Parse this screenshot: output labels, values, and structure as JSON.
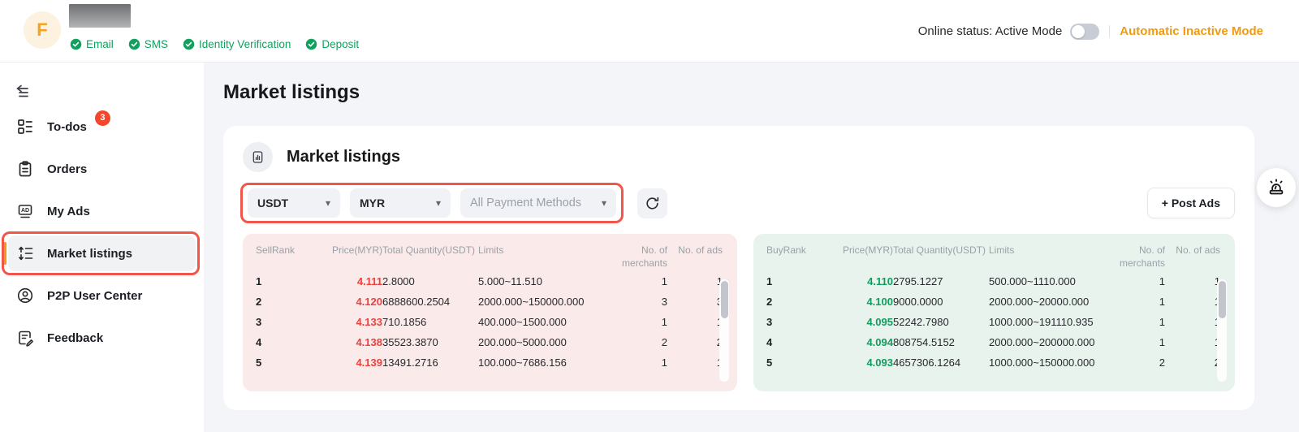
{
  "colors": {
    "accent_orange": "#F09A11",
    "annotation_red": "#F2564A",
    "badge_red": "#F4452D",
    "verified_green": "#12A05F",
    "sell_bg": "#FBEAEA",
    "buy_bg": "#E9F3EE",
    "sell_price": "#EF3F3B",
    "buy_price": "#0E9D5B"
  },
  "header": {
    "avatar_letter": "F",
    "verifications": [
      {
        "label": "Email"
      },
      {
        "label": "SMS"
      },
      {
        "label": "Identity Verification"
      },
      {
        "label": "Deposit"
      }
    ],
    "online_status_label": "Online status: Active Mode",
    "auto_mode_label": "Automatic Inactive Mode"
  },
  "sidebar": {
    "items": [
      {
        "label": "To-dos",
        "badge": "3"
      },
      {
        "label": "Orders"
      },
      {
        "label": "My Ads"
      },
      {
        "label": "Market listings",
        "active": true
      },
      {
        "label": "P2P User Center"
      },
      {
        "label": "Feedback"
      }
    ]
  },
  "main": {
    "page_title": "Market listings",
    "card_title": "Market listings",
    "filters": {
      "asset": "USDT",
      "fiat": "MYR",
      "payment_placeholder": "All Payment Methods"
    },
    "post_ads_label": "+ Post Ads"
  },
  "sell_table": {
    "headers": [
      "SellRank",
      "Price(MYR)",
      "Total Quantity(USDT)",
      "Limits",
      "No. of merchants",
      "No. of ads"
    ],
    "rows": [
      [
        "1",
        "4.111",
        "2.8000",
        "5.000~11.510",
        "1",
        "1"
      ],
      [
        "2",
        "4.120",
        "6888600.2504",
        "2000.000~150000.000",
        "3",
        "3"
      ],
      [
        "3",
        "4.133",
        "710.1856",
        "400.000~1500.000",
        "1",
        "1"
      ],
      [
        "4",
        "4.138",
        "35523.3870",
        "200.000~5000.000",
        "2",
        "2"
      ],
      [
        "5",
        "4.139",
        "13491.2716",
        "100.000~7686.156",
        "1",
        "1"
      ]
    ]
  },
  "buy_table": {
    "headers": [
      "BuyRank",
      "Price(MYR)",
      "Total Quantity(USDT)",
      "Limits",
      "No. of merchants",
      "No. of ads"
    ],
    "rows": [
      [
        "1",
        "4.110",
        "2795.1227",
        "500.000~1110.000",
        "1",
        "1"
      ],
      [
        "2",
        "4.100",
        "9000.0000",
        "2000.000~20000.000",
        "1",
        "1"
      ],
      [
        "3",
        "4.095",
        "52242.7980",
        "1000.000~191110.935",
        "1",
        "1"
      ],
      [
        "4",
        "4.094",
        "808754.5152",
        "2000.000~200000.000",
        "1",
        "1"
      ],
      [
        "5",
        "4.093",
        "4657306.1264",
        "1000.000~150000.000",
        "2",
        "2"
      ]
    ]
  }
}
